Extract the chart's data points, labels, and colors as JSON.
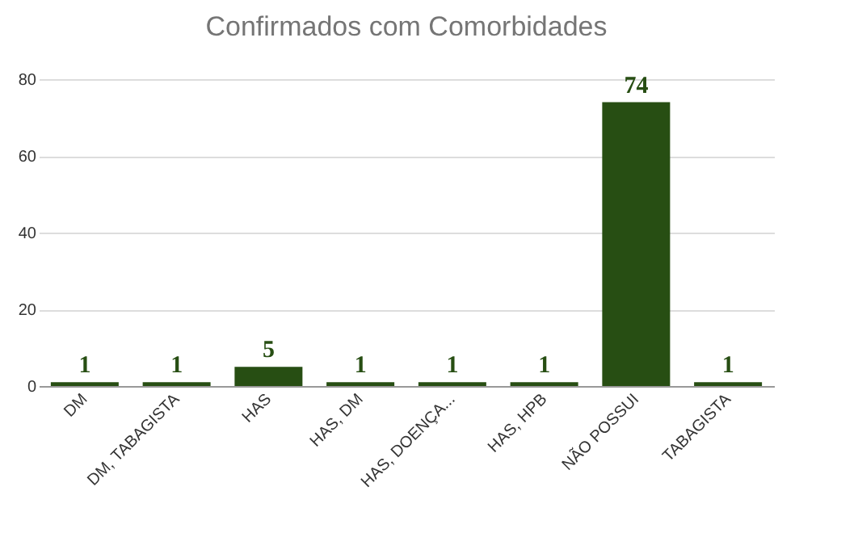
{
  "chart_data": {
    "type": "bar",
    "title": "Confirmados com Comorbidades",
    "categories": [
      "DM",
      "DM, TABAGISTA",
      "HAS",
      "HAS, DM",
      "HAS, DOENÇA...",
      "HAS, HPB",
      "NÃO POSSUI",
      "TABAGISTA"
    ],
    "values": [
      1,
      1,
      5,
      1,
      1,
      1,
      74,
      1
    ],
    "color": "#274e13",
    "ylim": [
      0,
      80
    ],
    "yticks": [
      0,
      20,
      40,
      60,
      80
    ],
    "grid": "y",
    "data_labels": true
  }
}
